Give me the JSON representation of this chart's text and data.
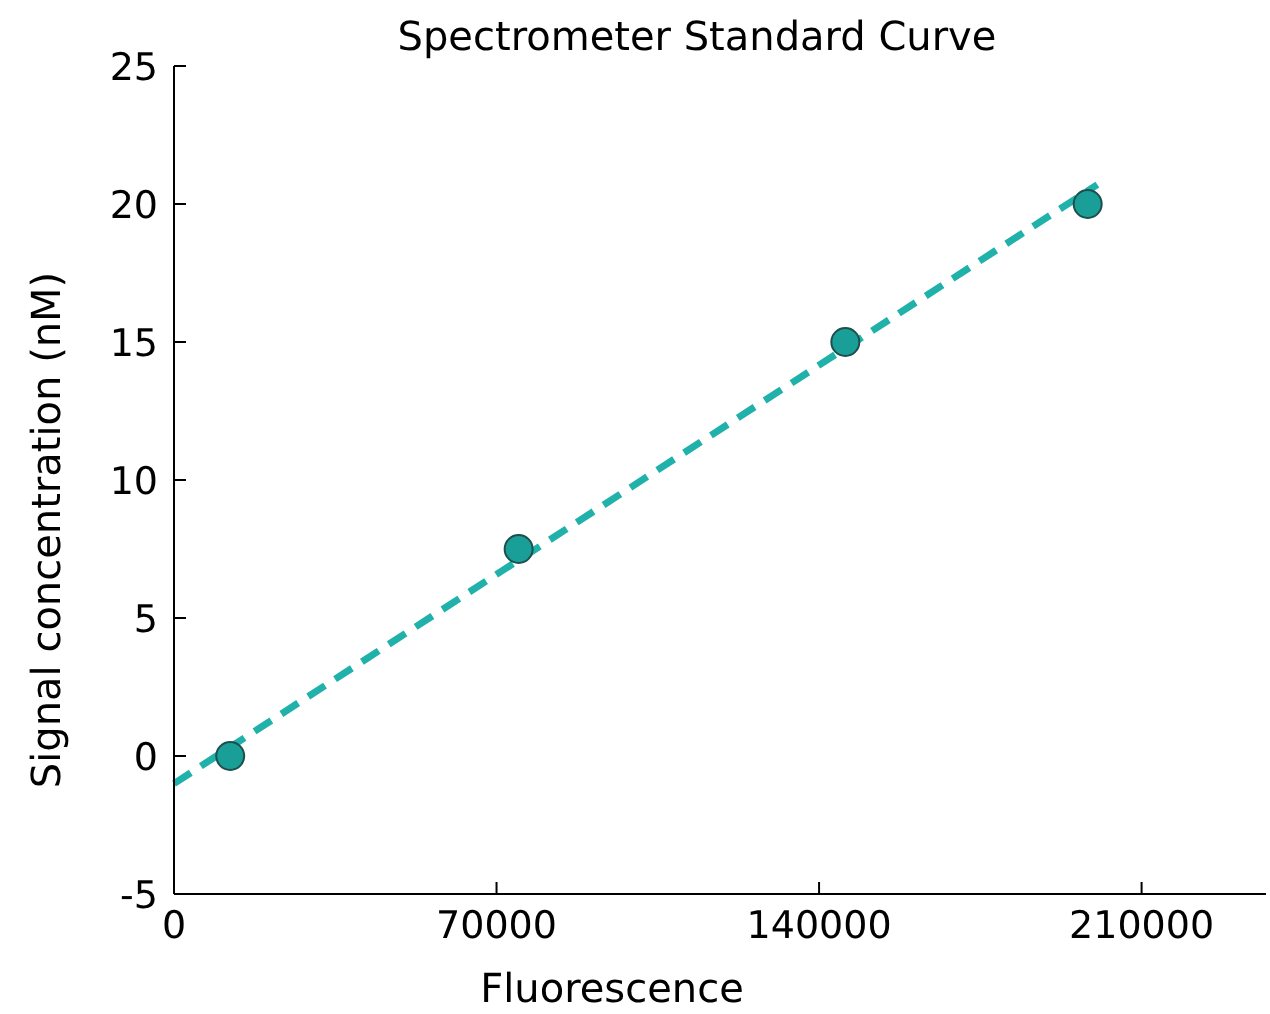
{
  "chart_data": {
    "type": "scatter",
    "title": "Spectrometer Standard Curve",
    "xlabel": "Fluorescence",
    "ylabel": "Signal concentration (nM)",
    "xlim": [
      0,
      237000
    ],
    "xticks": [
      0,
      70000,
      140000,
      210000
    ],
    "ylim": [
      -5,
      25
    ],
    "yticks": [
      -5,
      0,
      5,
      10,
      15,
      20,
      25
    ],
    "series": [
      {
        "color": "#1a9e98",
        "marker": "circle",
        "x": [
          12200,
          74800,
          145700,
          198300
        ],
        "values": [
          0,
          7.5,
          15,
          20
        ]
      },
      {
        "type": "line",
        "color": "#20b2aa",
        "line_style": "dashed",
        "marker": "none",
        "x": [
          0,
          200400
        ],
        "values": [
          -1,
          20.7
        ]
      }
    ]
  }
}
